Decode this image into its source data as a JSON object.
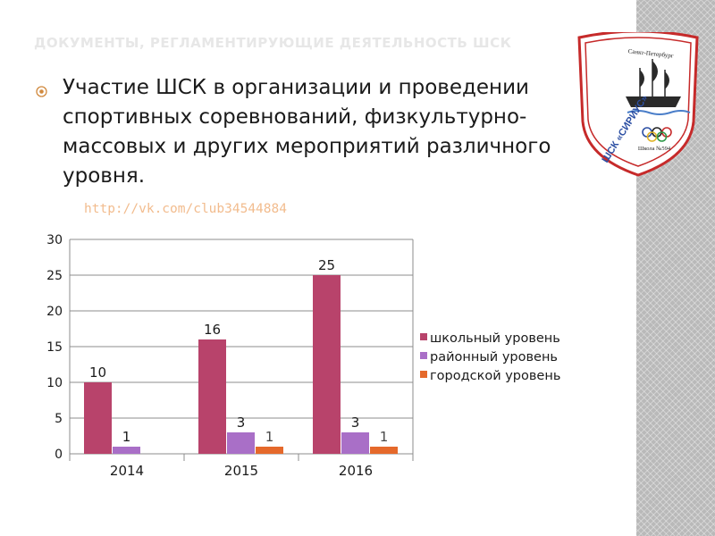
{
  "header": {
    "title": "ДОКУМЕНТЫ, РЕГЛАМЕНТИРУЮЩИЕ ДЕЯТЕЛЬНОСТЬ ШСК"
  },
  "bullet": {
    "icon": "circle-bullet-icon",
    "text": "Участие ШСК в организации и проведении спортивных соревнований, физкультурно-массовых и других мероприятий различного уровня."
  },
  "link": {
    "text": "http://vk.com/club34544884"
  },
  "logo": {
    "icon": "club-emblem-icon",
    "top_text": "Санкт-Петербург",
    "name": "ШСК «СИРИУС»",
    "bottom_text": "Школа №594"
  },
  "colors": {
    "school": "#b8436b",
    "district": "#a96fc7",
    "city": "#e5692b",
    "title": "#e7e7e7",
    "link": "#f2bc8e",
    "stripe": "#b9b9b9"
  },
  "chart_data": {
    "type": "bar",
    "title": "",
    "xlabel": "",
    "ylabel": "",
    "categories": [
      "2014",
      "2015",
      "2016"
    ],
    "ylim": [
      0,
      30
    ],
    "yticks": [
      "0",
      "5",
      "10",
      "15",
      "20",
      "25",
      "30"
    ],
    "grid": true,
    "legend_position": "right",
    "series": [
      {
        "name": "школьный уровень",
        "values": [
          10,
          16,
          25
        ],
        "labels": [
          "10",
          "16",
          "25"
        ]
      },
      {
        "name": "районный уровень",
        "values": [
          1,
          3,
          3
        ],
        "labels": [
          "1",
          "3",
          "3"
        ]
      },
      {
        "name": "городской уровень",
        "values": [
          null,
          1,
          1
        ],
        "labels": [
          "",
          "1",
          "1"
        ]
      }
    ]
  }
}
